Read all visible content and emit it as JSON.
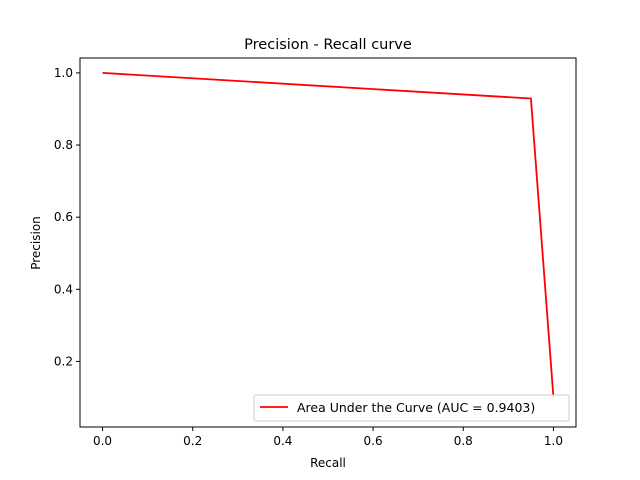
{
  "chart_data": {
    "type": "line",
    "title": "Precision - Recall curve",
    "xlabel": "Recall",
    "ylabel": "Precision",
    "xlim": [
      -0.05,
      1.05
    ],
    "ylim": [
      0.0182,
      1.0413
    ],
    "xticks": [
      0.0,
      0.2,
      0.4,
      0.6,
      0.8,
      1.0
    ],
    "xtick_labels": [
      "0.0",
      "0.2",
      "0.4",
      "0.6",
      "0.8",
      "1.0"
    ],
    "yticks": [
      0.2,
      0.4,
      0.6,
      0.8,
      1.0
    ],
    "ytick_labels": [
      "0.2",
      "0.4",
      "0.6",
      "0.8",
      "1.0"
    ],
    "grid": false,
    "legend_position": "lower-right",
    "series": [
      {
        "name": "Area Under the Curve (AUC = 0.9403)",
        "color": "#ff0000",
        "x": [
          0.0,
          0.95,
          1.0
        ],
        "y": [
          1.0,
          0.929,
          0.1
        ]
      }
    ]
  }
}
